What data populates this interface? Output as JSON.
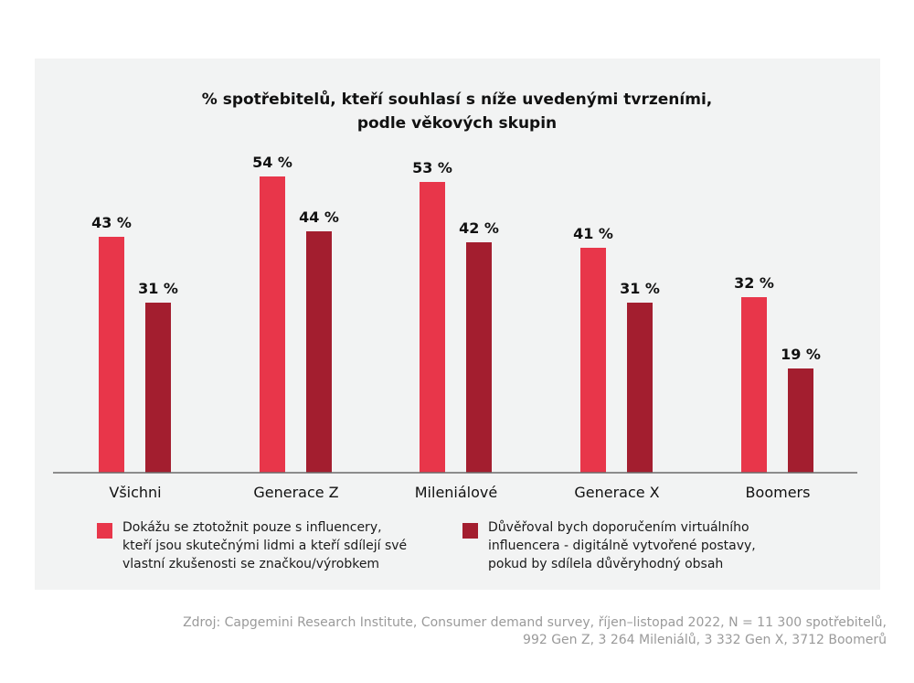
{
  "chart_data": {
    "type": "bar",
    "title_lines": [
      "% spotřebitelů, kteří souhlasí s níže uvedenými tvrzeními,",
      "podle věkových skupin"
    ],
    "categories": [
      "Všichni",
      "Generace Z",
      "Mileniálové",
      "Generace X",
      "Boomers"
    ],
    "series": [
      {
        "name": "Dokážu se ztotožnit pouze s influencery, kteří jsou skutečnými lidmi a kteří sdílejí své vlastní zkušenosti se značkou/výrobkem",
        "values": [
          43,
          54,
          53,
          41,
          32
        ],
        "color": "#e8364a"
      },
      {
        "name": "Důvěřoval bych doporučením virtuálního influencera - digitálně vytvořené postavy, pokud by sdílela důvěryhodný obsah",
        "values": [
          31,
          44,
          42,
          31,
          19
        ],
        "color": "#a31e2f"
      }
    ],
    "value_suffix": " %",
    "ylim": [
      0,
      60
    ],
    "grid": false,
    "legend_position": "bottom"
  },
  "legend": {
    "items": [
      {
        "lines": [
          "Dokážu se ztotožnit pouze s influencery,",
          "kteří jsou skutečnými lidmi a kteří sdílejí své",
          "vlastní zkušenosti se značkou/výrobkem"
        ]
      },
      {
        "lines": [
          "Důvěřoval bych doporučením virtuálního",
          "influencera - digitálně vytvořené postavy,",
          "pokud by sdílela důvěryhodný obsah"
        ]
      }
    ]
  },
  "source": {
    "lines": [
      "Zdroj: Capgemini Research Institute, Consumer demand survey, říjen–listopad 2022, N = 11 300 spotřebitelů,",
      "992 Gen Z, 3 264 Mileniálů, 3 332 Gen X, 3712 Boomerů"
    ]
  },
  "colors": {
    "panel_background": "#f2f3f3",
    "axis": "#6b6b6b"
  }
}
